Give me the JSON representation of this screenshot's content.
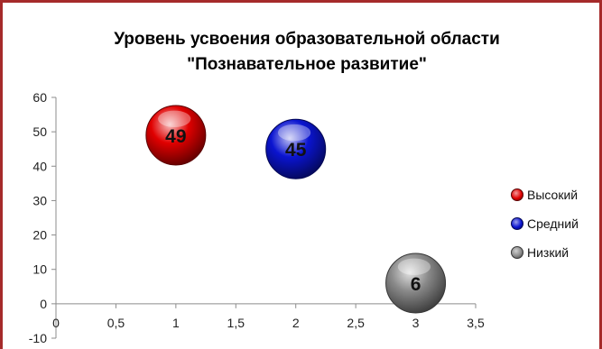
{
  "chart_data": {
    "type": "bubble",
    "title_line1": "Уровень усвоения образовательной области",
    "title_line2": "\"Познавательное развитие\"",
    "xlabel": "",
    "ylabel": "",
    "xlim": [
      0,
      3.5
    ],
    "ylim": [
      -10,
      60
    ],
    "x_ticks": [
      "0",
      "0,5",
      "1",
      "1,5",
      "2",
      "2,5",
      "3",
      "3,5"
    ],
    "x_tick_values": [
      0,
      0.5,
      1,
      1.5,
      2,
      2.5,
      3,
      3.5
    ],
    "y_ticks": [
      "-10",
      "0",
      "10",
      "20",
      "30",
      "40",
      "50",
      "60"
    ],
    "y_tick_values": [
      -10,
      0,
      10,
      20,
      30,
      40,
      50,
      60
    ],
    "grid": false,
    "legend_position": "right",
    "series": [
      {
        "name": "Высокий",
        "x": 1,
        "y": 49,
        "size": 49,
        "label": "49",
        "color": "#e00000"
      },
      {
        "name": "Средний",
        "x": 2,
        "y": 45,
        "size": 45,
        "label": "45",
        "color": "#0a14d0"
      },
      {
        "name": "Низкий",
        "x": 3,
        "y": 6,
        "size": 6,
        "label": "6",
        "color": "#8a8a8a"
      }
    ]
  },
  "frame_color": "#a52a2a"
}
